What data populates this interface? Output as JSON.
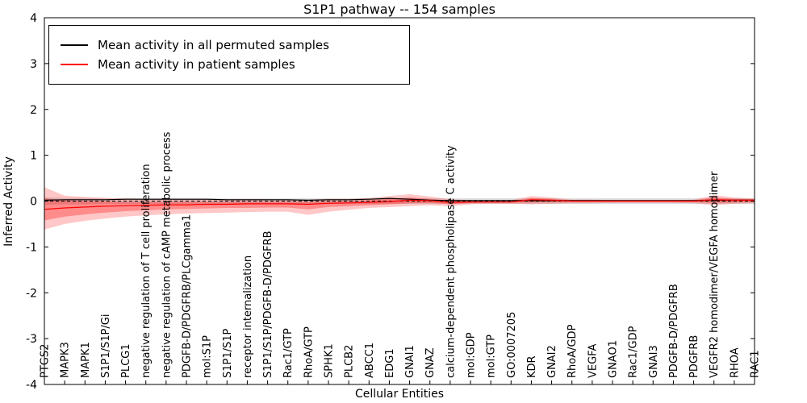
{
  "chart_data": {
    "type": "line",
    "title": "S1P1 pathway -- 154 samples",
    "xlabel": "Cellular Entities",
    "ylabel": "Inferred Activity",
    "ylim": [
      -4,
      4
    ],
    "yticks": [
      -4,
      -3,
      -2,
      -1,
      0,
      1,
      2,
      3,
      4
    ],
    "grid": false,
    "legend_position": "upper left",
    "legend": [
      {
        "label": "Mean activity in all permuted samples",
        "color": "#000000"
      },
      {
        "label": "Mean activity in patient samples",
        "color": "#ff0000"
      }
    ],
    "categories": [
      "PTGS2",
      "MAPK3",
      "MAPK1",
      "S1P1/S1P/Gi",
      "PLCG1",
      "negative regulation of T cell proliferation",
      "negative regulation of cAMP metabolic process",
      "PDGFB-D/PDGFRB/PLCgamma1",
      "mol:S1P",
      "S1P1/S1P",
      "receptor internalization",
      "S1P1/S1P/PDGFB-D/PDGFRB",
      "Rac1/GTP",
      "RhoA/GTP",
      "SPHK1",
      "PLCB2",
      "ABCC1",
      "EDG1",
      "GNAI1",
      "GNAZ",
      "calcium-dependent phospholipase C activity",
      "mol:GDP",
      "mol:GTP",
      "GO:0007205",
      "KDR",
      "GNAI2",
      "RhoA/GDP",
      "VEGFA",
      "GNAO1",
      "Rac1/GDP",
      "GNAI3",
      "PDGFB-D/PDGFRB",
      "PDGFRB",
      "VEGFR2 homodimer/VEGFA homodimer",
      "RHOA",
      "RAC1"
    ],
    "series": [
      {
        "name": "Mean activity in all permuted samples",
        "color": "#000000",
        "values": [
          0.02,
          0.03,
          0.03,
          0.03,
          0.04,
          0.04,
          0.04,
          0.04,
          0.04,
          0.03,
          0.03,
          0.03,
          0.03,
          0.02,
          0.03,
          0.03,
          0.04,
          0.06,
          0.04,
          0.02,
          0.01,
          0.01,
          0.01,
          0.01,
          0.01,
          0.01,
          0.01,
          0.01,
          0.01,
          0.01,
          0.01,
          0.01,
          0.01,
          0.02,
          0.02,
          0.02
        ]
      },
      {
        "name": "Mean activity in patient samples",
        "color": "#ff0000",
        "values": [
          -0.18,
          -0.15,
          -0.13,
          -0.11,
          -0.1,
          -0.09,
          -0.08,
          -0.08,
          -0.07,
          -0.07,
          -0.06,
          -0.06,
          -0.06,
          -0.07,
          -0.05,
          -0.04,
          -0.03,
          -0.01,
          0.02,
          0.01,
          -0.03,
          -0.02,
          -0.02,
          -0.02,
          0.03,
          0.02,
          0.0,
          0.0,
          0.0,
          0.0,
          0.0,
          0.0,
          0.0,
          0.03,
          0.02,
          0.02
        ]
      }
    ],
    "bands": [
      {
        "name": "permuted-range",
        "color": "#999999",
        "opacity": 0.35,
        "upper": [
          0.08,
          0.07,
          0.07,
          0.06,
          0.06,
          0.06,
          0.06,
          0.06,
          0.06,
          0.06,
          0.06,
          0.06,
          0.06,
          0.06,
          0.06,
          0.06,
          0.06,
          0.06,
          0.06,
          0.06,
          0.06,
          0.06,
          0.06,
          0.06,
          0.06,
          0.06,
          0.06,
          0.06,
          0.06,
          0.06,
          0.06,
          0.06,
          0.06,
          0.06,
          0.06,
          0.06
        ],
        "lower": [
          -0.08,
          -0.07,
          -0.07,
          -0.06,
          -0.06,
          -0.06,
          -0.06,
          -0.06,
          -0.06,
          -0.06,
          -0.06,
          -0.06,
          -0.06,
          -0.06,
          -0.06,
          -0.06,
          -0.06,
          -0.06,
          -0.06,
          -0.06,
          -0.06,
          -0.06,
          -0.06,
          -0.06,
          -0.06,
          -0.06,
          -0.06,
          -0.06,
          -0.06,
          -0.06,
          -0.06,
          -0.06,
          -0.06,
          -0.06,
          -0.06,
          -0.06
        ]
      },
      {
        "name": "patient-outer",
        "color": "#ff0000",
        "opacity": 0.22,
        "upper": [
          0.3,
          0.12,
          0.09,
          0.07,
          0.06,
          0.05,
          0.05,
          0.04,
          0.04,
          0.04,
          0.04,
          0.04,
          0.03,
          0.03,
          0.05,
          0.05,
          0.07,
          0.11,
          0.15,
          0.1,
          0.04,
          0.02,
          0.02,
          0.02,
          0.11,
          0.08,
          0.03,
          0.03,
          0.02,
          0.02,
          0.02,
          0.02,
          0.03,
          0.13,
          0.08,
          0.06
        ],
        "lower": [
          -0.62,
          -0.5,
          -0.43,
          -0.38,
          -0.34,
          -0.31,
          -0.29,
          -0.27,
          -0.26,
          -0.25,
          -0.24,
          -0.23,
          -0.23,
          -0.3,
          -0.23,
          -0.19,
          -0.15,
          -0.13,
          -0.11,
          -0.09,
          -0.11,
          -0.07,
          -0.06,
          -0.06,
          -0.07,
          -0.06,
          -0.05,
          -0.05,
          -0.04,
          -0.04,
          -0.04,
          -0.04,
          -0.05,
          -0.09,
          -0.06,
          -0.05
        ]
      },
      {
        "name": "patient-inner",
        "color": "#ff0000",
        "opacity": 0.3,
        "upper": [
          0.06,
          0.02,
          0.0,
          -0.01,
          -0.02,
          -0.02,
          -0.02,
          -0.02,
          -0.02,
          -0.02,
          -0.02,
          -0.02,
          -0.02,
          -0.02,
          -0.01,
          0.0,
          0.02,
          0.05,
          0.08,
          0.05,
          0.0,
          -0.01,
          -0.01,
          -0.01,
          0.07,
          0.05,
          0.01,
          0.01,
          0.01,
          0.01,
          0.01,
          0.01,
          0.01,
          0.08,
          0.05,
          0.04
        ],
        "lower": [
          -0.42,
          -0.34,
          -0.29,
          -0.25,
          -0.22,
          -0.2,
          -0.18,
          -0.17,
          -0.16,
          -0.15,
          -0.15,
          -0.14,
          -0.14,
          -0.18,
          -0.13,
          -0.11,
          -0.09,
          -0.07,
          -0.05,
          -0.04,
          -0.07,
          -0.04,
          -0.03,
          -0.03,
          -0.03,
          -0.02,
          -0.02,
          -0.02,
          -0.02,
          -0.02,
          -0.02,
          -0.02,
          -0.02,
          -0.04,
          -0.03,
          -0.02
        ]
      }
    ],
    "zero_line": 0
  }
}
